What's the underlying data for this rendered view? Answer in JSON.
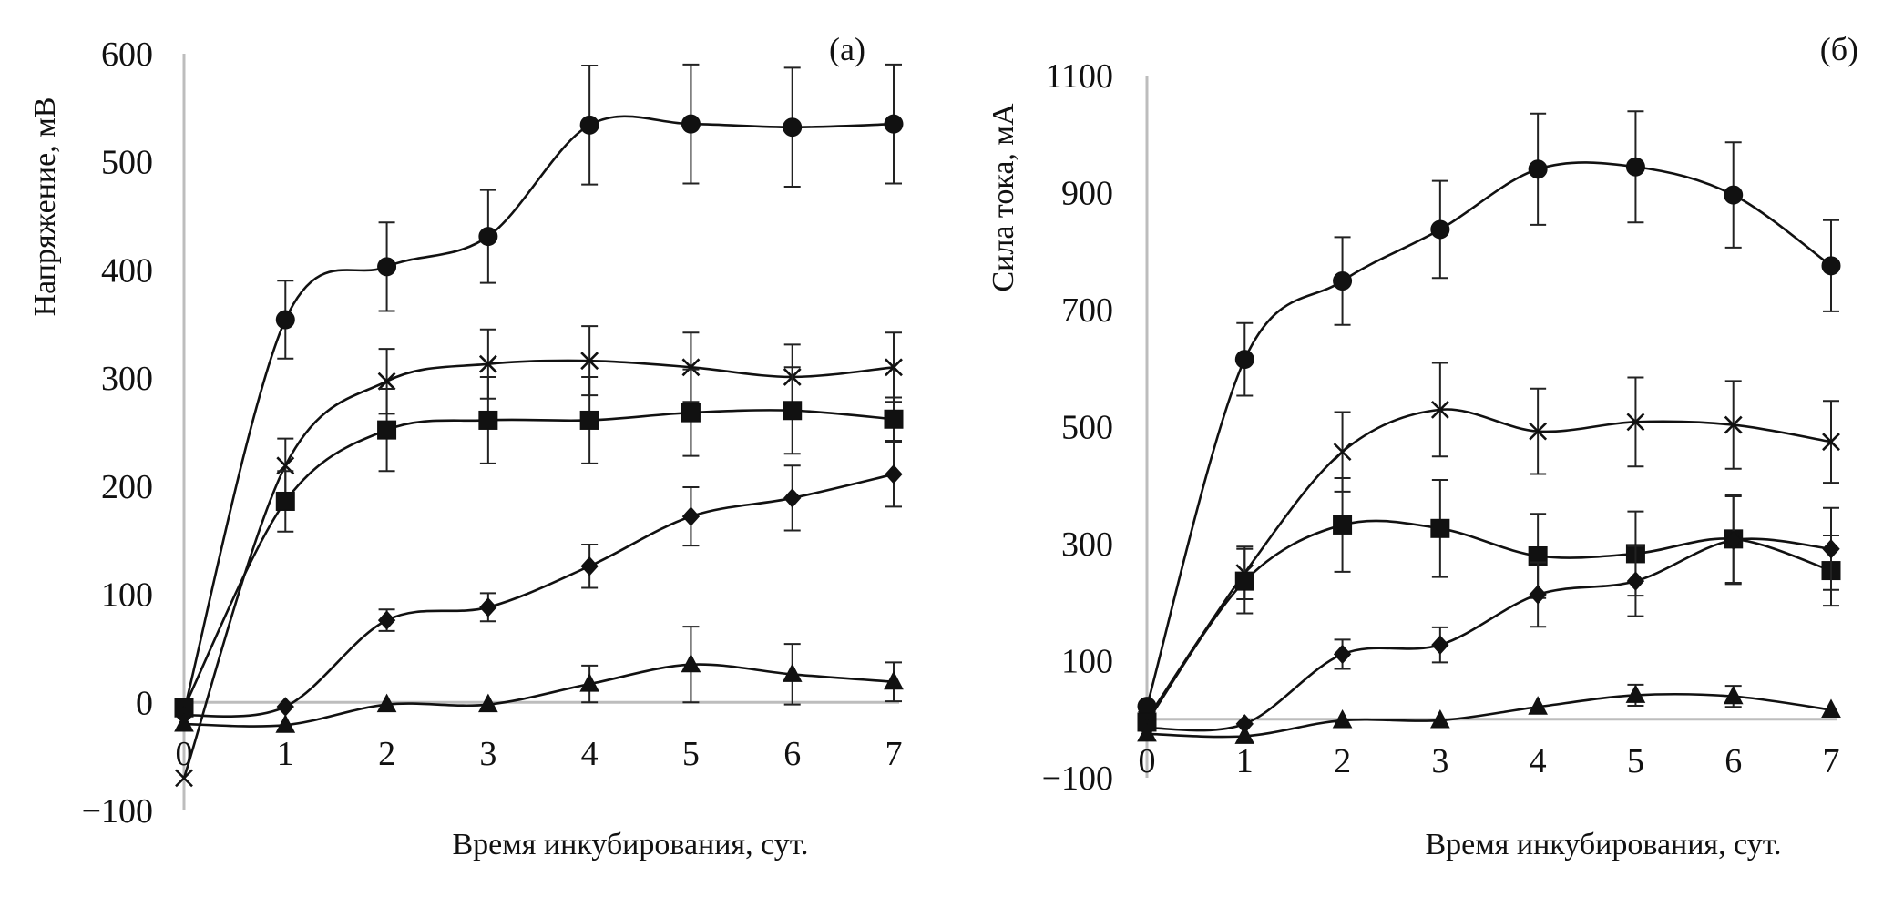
{
  "chart_data": [
    {
      "type": "line",
      "panel_label": "(a)",
      "xlabel": "Время инкубирования, сут.",
      "ylabel": "Напряжение, мВ",
      "x": [
        0,
        1,
        2,
        3,
        4,
        5,
        6,
        7
      ],
      "xticks": [
        "0",
        "1",
        "2",
        "3",
        "4",
        "5",
        "6",
        "7"
      ],
      "yticks": [
        "600",
        "500",
        "400",
        "300",
        "200",
        "100",
        "0",
        "−100"
      ],
      "ytick_values": [
        600,
        500,
        400,
        300,
        200,
        100,
        0,
        -100
      ],
      "ylim": [
        -100,
        600
      ],
      "xlim": [
        0,
        7
      ],
      "grid": false,
      "smooth": true,
      "series": [
        {
          "marker": "circle",
          "values": [
            -8,
            354,
            403,
            431,
            534,
            535,
            532,
            535
          ],
          "errors": [
            0,
            36,
            41,
            43,
            55,
            55,
            55,
            55
          ]
        },
        {
          "marker": "cross",
          "values": [
            -70,
            219,
            297,
            313,
            316,
            310,
            301,
            310
          ],
          "errors": [
            0,
            25,
            30,
            32,
            32,
            32,
            30,
            32
          ]
        },
        {
          "marker": "square",
          "values": [
            -5,
            186,
            252,
            261,
            261,
            268,
            270,
            262
          ],
          "errors": [
            0,
            28,
            38,
            40,
            40,
            40,
            40,
            20
          ]
        },
        {
          "marker": "diamond",
          "values": [
            -12,
            -4,
            76,
            88,
            126,
            172,
            189,
            211
          ],
          "errors": [
            0,
            0,
            10,
            13,
            20,
            27,
            30,
            30
          ]
        },
        {
          "marker": "triangle",
          "values": [
            -20,
            -21,
            -2,
            -2,
            17,
            35,
            26,
            19
          ],
          "errors": [
            0,
            0,
            0,
            0,
            17,
            35,
            28,
            18
          ]
        }
      ]
    },
    {
      "type": "line",
      "panel_label": "(б)",
      "xlabel": "Время инкубирования, сут.",
      "ylabel": "Сила тока, мА",
      "x": [
        0,
        1,
        2,
        3,
        4,
        5,
        6,
        7
      ],
      "xticks": [
        "0",
        "1",
        "2",
        "3",
        "4",
        "5",
        "6",
        "7"
      ],
      "yticks": [
        "1100",
        "900",
        "700",
        "500",
        "300",
        "100",
        "−100"
      ],
      "ytick_values": [
        1100,
        900,
        700,
        500,
        300,
        100,
        -100
      ],
      "ylim": [
        -100,
        1100
      ],
      "xlim": [
        0,
        7
      ],
      "grid": false,
      "smooth": true,
      "series": [
        {
          "marker": "circle",
          "values": [
            22,
            615,
            749,
            837,
            940,
            944,
            896,
            775
          ],
          "errors": [
            0,
            62,
            75,
            83,
            95,
            95,
            90,
            78
          ]
        },
        {
          "marker": "cross",
          "values": [
            0,
            250,
            457,
            529,
            492,
            508,
            503,
            474
          ],
          "errors": [
            0,
            45,
            68,
            80,
            73,
            76,
            75,
            70
          ]
        },
        {
          "marker": "square",
          "values": [
            -5,
            236,
            332,
            326,
            279,
            283,
            308,
            254
          ],
          "errors": [
            0,
            55,
            80,
            83,
            72,
            72,
            75,
            60
          ]
        },
        {
          "marker": "diamond",
          "values": [
            -15,
            -8,
            111,
            127,
            213,
            236,
            306,
            291
          ],
          "errors": [
            0,
            0,
            25,
            30,
            55,
            60,
            75,
            70
          ]
        },
        {
          "marker": "triangle",
          "values": [
            -25,
            -29,
            -2,
            -2,
            21,
            41,
            39,
            16
          ],
          "errors": [
            0,
            0,
            0,
            0,
            0,
            18,
            18,
            0
          ]
        }
      ]
    }
  ]
}
